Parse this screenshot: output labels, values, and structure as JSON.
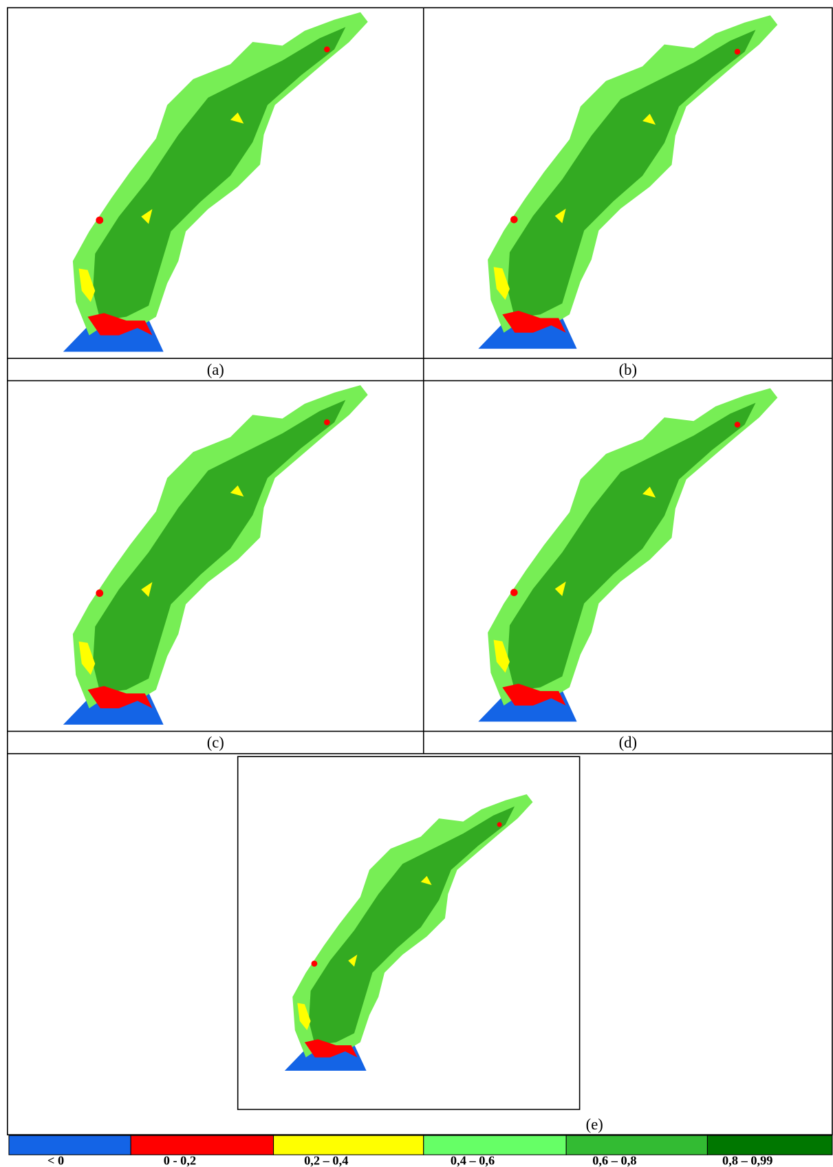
{
  "panels": [
    {
      "label": "(a)"
    },
    {
      "label": "(b)"
    },
    {
      "label": "(c)"
    },
    {
      "label": "(d)"
    },
    {
      "label": "(e)"
    }
  ],
  "legend": [
    {
      "label": "< 0",
      "color": "#1464e6"
    },
    {
      "label": "0 - 0,2",
      "color": "#ff0000"
    },
    {
      "label": "0,2 – 0,4",
      "color": "#ffff00"
    },
    {
      "label": "0,4 – 0,6",
      "color": "#66ff66"
    },
    {
      "label": "0,6 – 0,8",
      "color": "#33bb33"
    },
    {
      "label": "0,8 – 0,99",
      "color": "#007700"
    }
  ]
}
